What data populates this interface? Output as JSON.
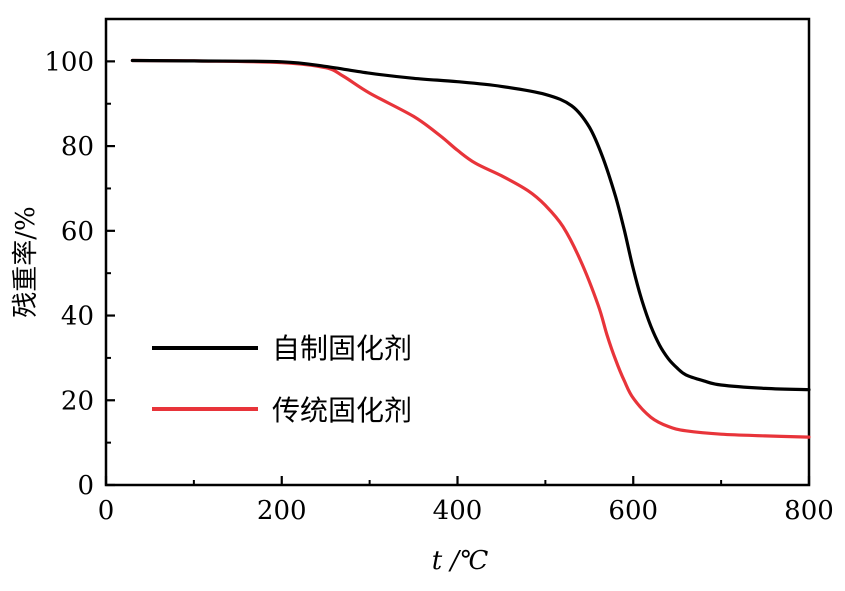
{
  "chart_data": {
    "type": "line",
    "title": "",
    "xlabel": "t /℃",
    "ylabel": "残重率/%",
    "xlim": [
      0,
      800
    ],
    "ylim": [
      0,
      110
    ],
    "x_ticks": [
      0,
      200,
      400,
      600,
      800
    ],
    "y_ticks": [
      0,
      20,
      40,
      60,
      80,
      100
    ],
    "grid": false,
    "legend_position": "center-left",
    "series": [
      {
        "name": "自制固化剂",
        "color": "#000000",
        "x": [
          30,
          100,
          200,
          250,
          300,
          350,
          400,
          450,
          500,
          530,
          550,
          565,
          580,
          590,
          600,
          610,
          620,
          630,
          640,
          650,
          660,
          680,
          700,
          750,
          800
        ],
        "y": [
          100.2,
          100.1,
          99.9,
          98.8,
          97.2,
          96.0,
          95.2,
          94.1,
          92.2,
          89.5,
          84.5,
          77.5,
          68.0,
          60.0,
          51.0,
          43.5,
          37.5,
          33.0,
          29.8,
          27.6,
          26.0,
          24.6,
          23.6,
          22.8,
          22.5
        ]
      },
      {
        "name": "传统固化剂",
        "color": "#e8343a",
        "x": [
          30,
          100,
          200,
          250,
          270,
          300,
          350,
          380,
          400,
          420,
          450,
          480,
          500,
          520,
          540,
          560,
          570,
          580,
          590,
          600,
          620,
          640,
          660,
          700,
          750,
          800
        ],
        "y": [
          100.2,
          100.1,
          99.7,
          98.5,
          96.5,
          92.5,
          87.0,
          82.5,
          79.0,
          76.0,
          73.0,
          69.5,
          66.0,
          61.0,
          53.0,
          42.5,
          35.5,
          29.5,
          24.5,
          20.5,
          16.0,
          13.8,
          12.8,
          12.0,
          11.6,
          11.3
        ]
      }
    ]
  },
  "colors": {
    "axis": "#000000",
    "background": "#ffffff"
  }
}
